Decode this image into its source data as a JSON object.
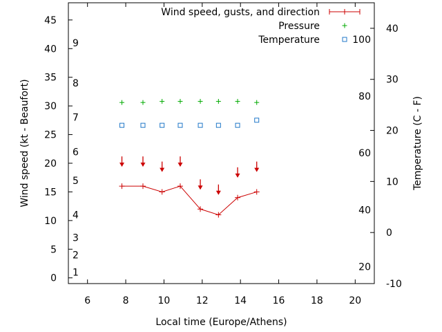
{
  "chart_data": {
    "type": "line",
    "title": "",
    "xlabel": "Local time (Europe/Athens)",
    "ylabel": "Wind speed (kt - Beaufort)",
    "y2label": "Temperature (C - F)",
    "xlim": [
      5,
      21
    ],
    "ylim": [
      -1,
      48
    ],
    "y2lim": [
      -10,
      45
    ],
    "x_ticks": [
      6,
      8,
      10,
      12,
      14,
      16,
      18,
      20
    ],
    "y_ticks": [
      0,
      5,
      10,
      15,
      20,
      25,
      30,
      35,
      40,
      45
    ],
    "y2_ticks": [
      -10,
      0,
      10,
      20,
      30,
      40
    ],
    "beaufort_labels": [
      {
        "label": "1",
        "y": 1
      },
      {
        "label": "2",
        "y": 4
      },
      {
        "label": "3",
        "y": 7
      },
      {
        "label": "4",
        "y": 11
      },
      {
        "label": "5",
        "y": 17
      },
      {
        "label": "6",
        "y": 22
      },
      {
        "label": "7",
        "y": 28
      },
      {
        "label": "8",
        "y": 34
      },
      {
        "label": "9",
        "y": 41
      }
    ],
    "fahrenheit_labels": [
      {
        "label": "20",
        "y2": -6.7
      },
      {
        "label": "40",
        "y2": 4.4
      },
      {
        "label": "60",
        "y2": 15.6
      },
      {
        "label": "80",
        "y2": 26.7
      },
      {
        "label": "100",
        "y2": 37.8
      }
    ],
    "series": [
      {
        "name": "Wind speed, gusts, and direction",
        "color": "#cc0000",
        "marker": "plus",
        "x": [
          7.8,
          8.9,
          9.9,
          10.85,
          11.9,
          12.85,
          13.85,
          14.85
        ],
        "values": [
          16,
          16,
          15,
          16,
          12,
          11,
          14,
          15
        ],
        "direction_arrows_at": [
          19.5,
          19.5,
          18.6,
          19.5,
          15.5,
          14.6,
          17.6,
          18.6
        ]
      },
      {
        "name": "Pressure",
        "color": "#00aa00",
        "marker": "plus",
        "x": [
          7.8,
          8.9,
          9.9,
          10.85,
          11.9,
          12.85,
          13.85,
          14.85
        ],
        "values": [
          30.6,
          30.6,
          30.8,
          30.8,
          30.8,
          30.8,
          30.8,
          30.6
        ]
      },
      {
        "name": "Temperature",
        "color": "#1f77c8",
        "marker": "square",
        "axis": "y2",
        "x": [
          7.8,
          8.9,
          9.9,
          10.85,
          11.9,
          12.85,
          13.85,
          14.85
        ],
        "values": [
          21,
          21,
          21,
          21,
          21,
          21,
          21,
          22
        ]
      }
    ],
    "legend_position": "top-right"
  }
}
